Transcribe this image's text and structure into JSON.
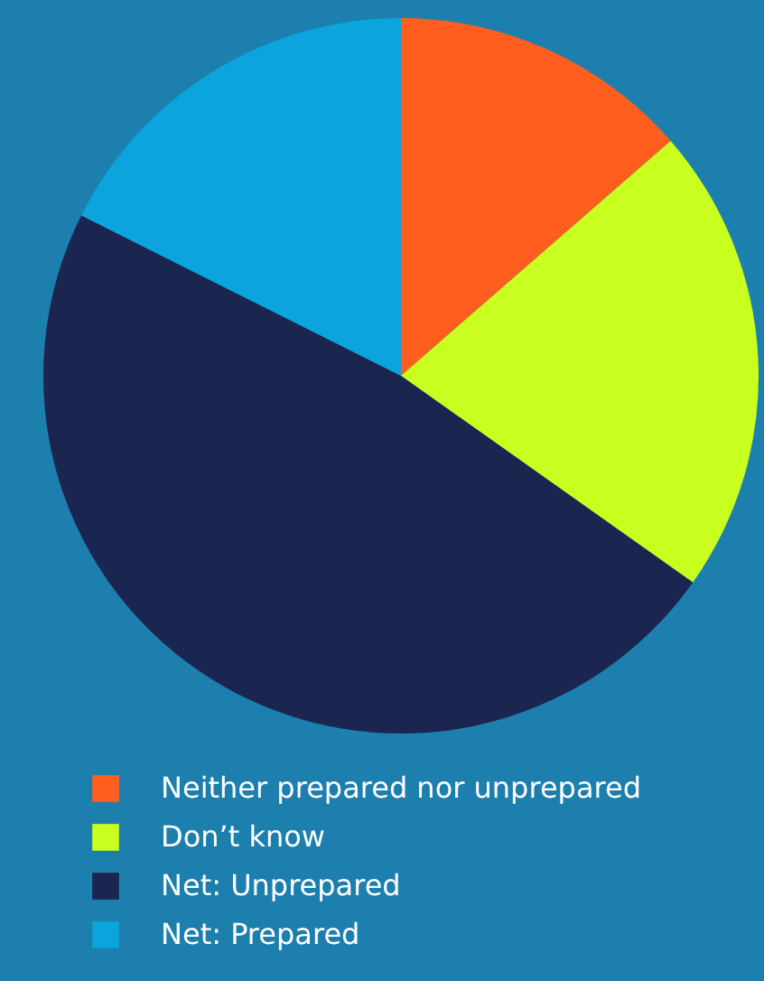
{
  "chart_data": {
    "type": "pie",
    "categories": [
      "Neither prepared nor unprepared",
      "Don’t know",
      "Net: Unprepared",
      "Net: Prepared"
    ],
    "values": [
      13.6,
      21.2,
      47.6,
      17.6
    ],
    "colors": [
      "#ff5e1f",
      "#c8ff1f",
      "#1b2650",
      "#0ba4dc"
    ],
    "legend": "bottom"
  }
}
